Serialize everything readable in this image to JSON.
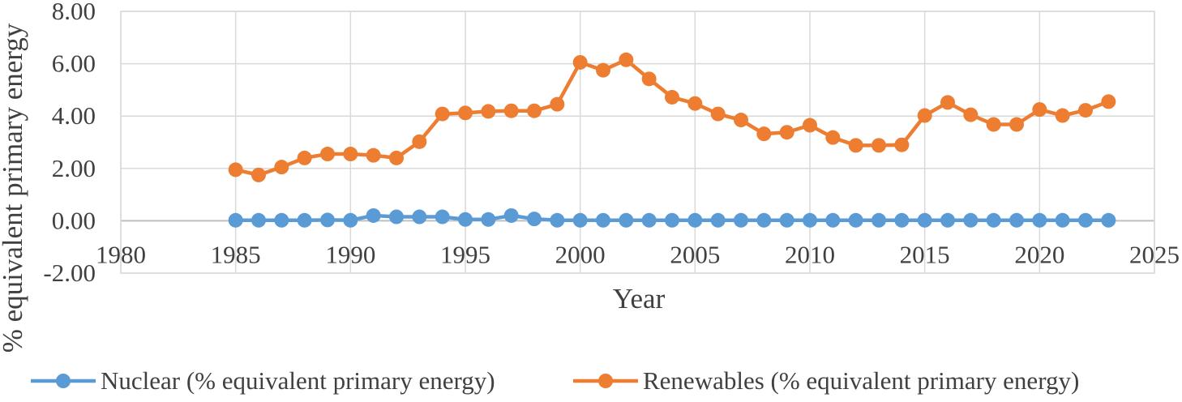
{
  "chart_data": {
    "type": "line",
    "title": "",
    "xlabel": "Year",
    "ylabel": "% equivalent primary energy",
    "xlim": [
      1980,
      2025
    ],
    "ylim": [
      -2,
      8
    ],
    "x_ticks": [
      1980,
      1985,
      1990,
      1995,
      2000,
      2005,
      2010,
      2015,
      2020,
      2025
    ],
    "y_ticks": [
      -2,
      0,
      2,
      4,
      6,
      8
    ],
    "y_tick_labels": [
      "-2.00",
      "0.00",
      "2.00",
      "4.00",
      "6.00",
      "8.00"
    ],
    "x_tick_labels": [
      "1980",
      "1985",
      "1990",
      "1995",
      "2000",
      "2005",
      "2010",
      "2015",
      "2020",
      "2025"
    ],
    "grid": true,
    "legend_position": "bottom",
    "x": [
      1985,
      1986,
      1987,
      1988,
      1989,
      1990,
      1991,
      1992,
      1993,
      1994,
      1995,
      1996,
      1997,
      1998,
      1999,
      2000,
      2001,
      2002,
      2003,
      2004,
      2005,
      2006,
      2007,
      2008,
      2009,
      2010,
      2011,
      2012,
      2013,
      2014,
      2015,
      2016,
      2017,
      2018,
      2019,
      2020,
      2021,
      2022,
      2023
    ],
    "series": [
      {
        "name": "Nuclear (% equivalent primary energy)",
        "color": "#5B9BD5",
        "values": [
          0.02,
          0.02,
          0.02,
          0.02,
          0.03,
          0.02,
          0.2,
          0.15,
          0.15,
          0.15,
          0.05,
          0.05,
          0.2,
          0.07,
          0.02,
          0.02,
          0.02,
          0.02,
          0.02,
          0.02,
          0.02,
          0.02,
          0.02,
          0.02,
          0.02,
          0.02,
          0.02,
          0.02,
          0.02,
          0.02,
          0.02,
          0.02,
          0.02,
          0.02,
          0.02,
          0.02,
          0.02,
          0.02,
          0.02
        ]
      },
      {
        "name": "Renewables (% equivalent primary energy)",
        "color": "#ED7D31",
        "values": [
          1.95,
          1.75,
          2.05,
          2.4,
          2.55,
          2.55,
          2.5,
          2.4,
          3.02,
          4.08,
          4.12,
          4.18,
          4.2,
          4.2,
          4.45,
          6.05,
          5.75,
          6.15,
          5.42,
          4.72,
          4.48,
          4.08,
          3.85,
          3.32,
          3.38,
          3.65,
          3.18,
          2.88,
          2.88,
          2.9,
          4.02,
          4.52,
          4.05,
          3.68,
          3.68,
          4.25,
          4.02,
          4.22,
          4.55
        ]
      }
    ]
  }
}
